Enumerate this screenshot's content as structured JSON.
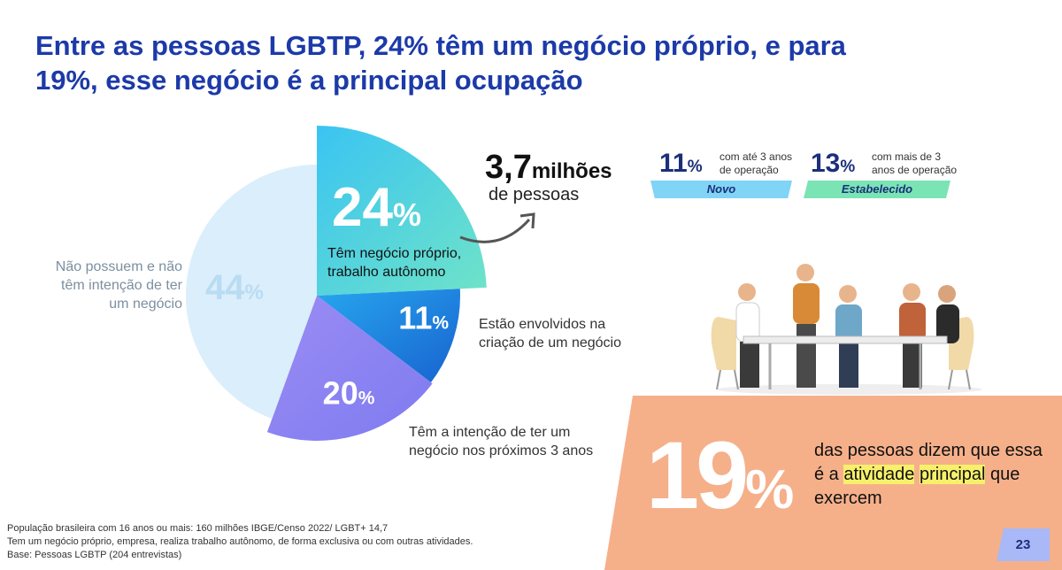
{
  "title": {
    "line1": "Entre as pessoas LGBTP, 24% têm um negócio próprio, e para",
    "line2": "19%, esse negócio é a principal ocupação"
  },
  "chart_data": {
    "type": "pie",
    "slices": [
      {
        "label": "Têm negócio próprio, trabalho autônomo",
        "value": 24,
        "pct_text": "24%",
        "color": "#39bff0"
      },
      {
        "label": "Estão envolvidos na criação de um negócio",
        "value": 11,
        "pct_text": "11%",
        "color": "#1f86e0"
      },
      {
        "label": "Têm a intenção de ter um negócio nos próximos 3 anos",
        "value": 20,
        "pct_text": "20%",
        "color": "#8f83f2"
      },
      {
        "label": "Não possuem e não têm intenção de ter um negócio",
        "value": 44,
        "pct_text": "44%",
        "color": "#dbeefb"
      }
    ]
  },
  "labels": {
    "own_line1": "Têm negócio próprio,",
    "own_line2": "trabalho autônomo",
    "creating_line1": "Estão envolvidos na",
    "creating_line2": "criação de um negócio",
    "intend_line1": "Têm a intenção de ter um",
    "intend_line2": "negócio nos próximos 3 anos",
    "none_line1": "Não possuem e não",
    "none_line2": "têm intenção de ter",
    "none_line3": "um negócio"
  },
  "highlight": {
    "number": "3,7",
    "unit": "milhões",
    "sub": "de pessoas"
  },
  "stats": {
    "new_number": "11",
    "new_symbol": "%",
    "new_desc_line1": "com até 3 anos",
    "new_desc_line2": "de operação",
    "new_label": "Novo",
    "est_number": "13",
    "est_symbol": "%",
    "est_desc_line1": "com mais de 3",
    "est_desc_line2": "anos de operação",
    "est_label": "Estabelecido"
  },
  "box": {
    "number": "19",
    "symbol": "%",
    "text_part1": "das pessoas dizem que essa é a ",
    "text_hl1": "atividade",
    "text_hl2": "principal",
    "text_part2": " que exercem"
  },
  "footnotes": {
    "line1": "População brasileira com 16 anos ou mais: 160 milhões IBGE/Censo 2022/ LGBT+ 14,7",
    "line2": "Tem um negócio próprio, empresa, realiza trabalho autônomo, de forma exclusiva ou com outras atividades.",
    "line3": "Base: Pessoas LGBTP (204 entrevistas)"
  },
  "page_number": "23",
  "colors": {
    "title": "#1c3aa8",
    "box": "#f5b08a",
    "highlight": "#f7f06b"
  }
}
